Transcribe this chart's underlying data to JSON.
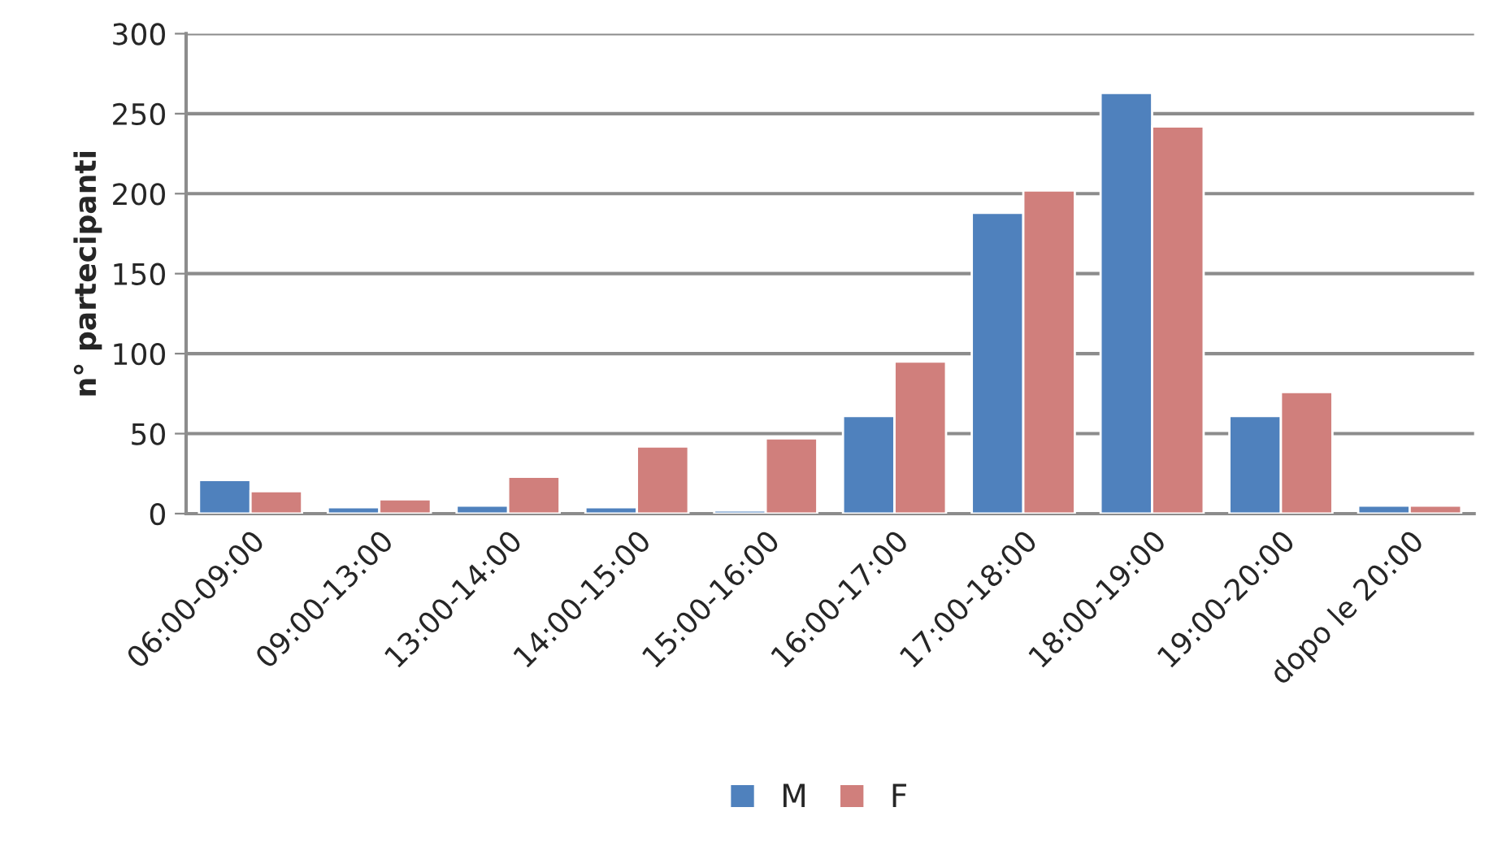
{
  "chart_data": {
    "type": "bar",
    "ylabel": "n° partecipanti",
    "categories": [
      "06:00-09:00",
      "09:00-13:00",
      "13:00-14:00",
      "14:00-15:00",
      "15:00-16:00",
      "16:00-17:00",
      "17:00-18:00",
      "18:00-19:00",
      "19:00-20:00",
      "dopo le 20:00"
    ],
    "series": [
      {
        "name": "M",
        "color": "#4f81bd",
        "values": [
          21,
          4,
          5,
          4,
          2,
          61,
          188,
          263,
          61,
          5
        ]
      },
      {
        "name": "F",
        "color": "#d07f7c",
        "values": [
          14,
          9,
          23,
          42,
          47,
          95,
          202,
          242,
          76,
          5
        ]
      }
    ],
    "ylim": [
      0,
      300
    ],
    "yticks": [
      0,
      50,
      100,
      150,
      200,
      250,
      300
    ],
    "grid": "y",
    "legend": "bottom"
  }
}
